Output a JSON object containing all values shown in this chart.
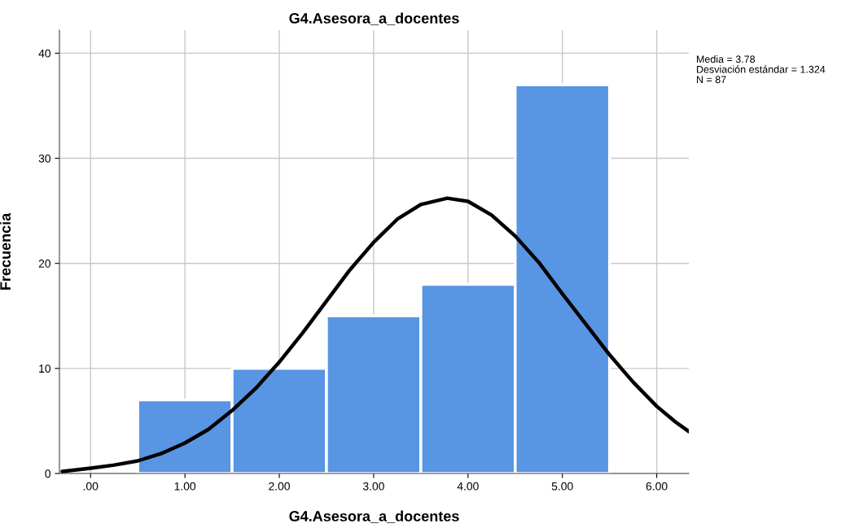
{
  "chart_data": {
    "type": "histogram",
    "title": "G4.Asesora_a_docentes",
    "xlabel": "G4.Asesora_a_docentes",
    "ylabel": "Frecuencia",
    "bins": [
      0.5,
      1.5,
      2.5,
      3.5,
      4.5,
      5.5
    ],
    "series": [
      {
        "type": "histogram",
        "color": "#5895e3",
        "values": [
          7,
          10,
          15,
          18,
          37
        ]
      },
      {
        "type": "line",
        "color": "#000000",
        "x": [
          -0.3,
          0,
          0.25,
          0.5,
          0.75,
          1.0,
          1.25,
          1.5,
          1.75,
          2.0,
          2.25,
          2.5,
          2.75,
          3.0,
          3.25,
          3.5,
          3.78,
          4.0,
          4.25,
          4.5,
          4.75,
          5.0,
          5.25,
          5.5,
          5.75,
          6.0,
          6.2,
          6.34
        ],
        "values": [
          0.2,
          0.5,
          0.8,
          1.2,
          1.9,
          2.9,
          4.2,
          6.0,
          8.1,
          10.6,
          13.4,
          16.4,
          19.4,
          22.0,
          24.2,
          25.6,
          26.2,
          25.9,
          24.6,
          22.6,
          20.1,
          17.1,
          14.2,
          11.3,
          8.7,
          6.4,
          4.9,
          4.0
        ]
      }
    ],
    "xlim": [
      -0.33,
      6.34
    ],
    "ylim": [
      0,
      42.2
    ],
    "xticks": [
      {
        "value": 0,
        "label": ".00"
      },
      {
        "value": 1,
        "label": "1.00"
      },
      {
        "value": 2,
        "label": "2.00"
      },
      {
        "value": 3,
        "label": "3.00"
      },
      {
        "value": 4,
        "label": "4.00"
      },
      {
        "value": 5,
        "label": "5.00"
      },
      {
        "value": 6,
        "label": "6.00"
      }
    ],
    "yticks": [
      0,
      10,
      20,
      30,
      40
    ],
    "grid": true,
    "annotations": [
      "Media = 3.78",
      "Desviación estándar = 1.324",
      "N = 87"
    ]
  }
}
